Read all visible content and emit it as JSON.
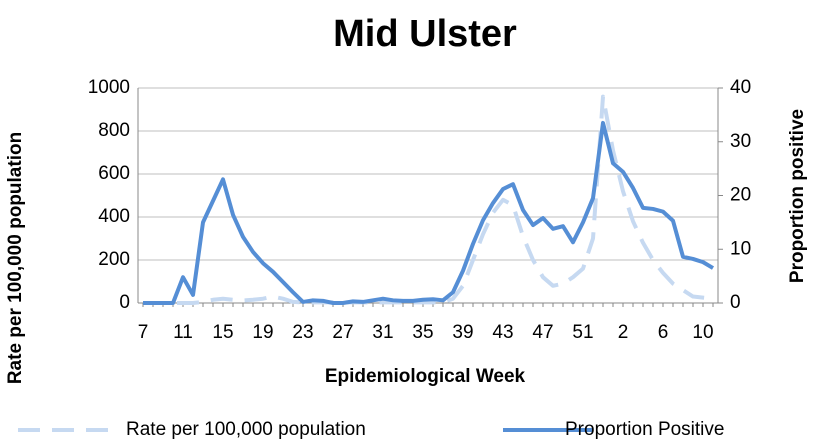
{
  "chart_data": {
    "type": "line",
    "title": "Mid Ulster",
    "x_label": "Epidemiological Week",
    "y_label": "Rate per 100,000 population",
    "y2_label": "Proportion positive",
    "categories": [
      "7",
      null,
      null,
      null,
      "11",
      null,
      null,
      null,
      "15",
      null,
      null,
      null,
      "19",
      null,
      null,
      null,
      "23",
      null,
      null,
      null,
      "27",
      null,
      null,
      null,
      "31",
      null,
      null,
      null,
      "35",
      null,
      null,
      null,
      "39",
      null,
      null,
      null,
      "43",
      null,
      null,
      null,
      "47",
      null,
      null,
      null,
      "51",
      null,
      null,
      null,
      "2",
      null,
      null,
      null,
      "6",
      null,
      null,
      null,
      "10",
      null
    ],
    "series": [
      {
        "name": "Rate per 100,000 population",
        "color": "#c6d9f1",
        "dashed": true,
        "values": [
          0,
          0,
          0,
          0,
          0,
          0,
          5,
          15,
          20,
          15,
          12,
          15,
          20,
          30,
          20,
          5,
          3,
          3,
          3,
          3,
          3,
          3,
          3,
          3,
          3,
          3,
          3,
          3,
          3,
          3,
          3,
          20,
          80,
          200,
          320,
          420,
          480,
          455,
          310,
          200,
          120,
          80,
          90,
          120,
          160,
          300,
          960,
          710,
          520,
          380,
          280,
          200,
          140,
          90,
          60,
          30,
          25,
          20
        ]
      },
      {
        "name": "Proportion Positive",
        "color": "#558ed5",
        "axis": "y2",
        "values": [
          0,
          0,
          0,
          0,
          4.8,
          1.5,
          15,
          19,
          23,
          16.4,
          12.3,
          9.5,
          7.4,
          5.8,
          3.9,
          2,
          0.2,
          0.5,
          0.4,
          0,
          0,
          0.3,
          0.2,
          0.5,
          0.8,
          0.5,
          0.4,
          0.4,
          0.6,
          0.7,
          0.5,
          2,
          6,
          11,
          15.4,
          18.6,
          21.2,
          22.1,
          17.3,
          14.5,
          15.8,
          13.8,
          14.3,
          11.3,
          15,
          19.5,
          33.5,
          26,
          24.4,
          21.4,
          17.7,
          17.5,
          17,
          15.3,
          8.6,
          8.2,
          7.6,
          6.5
        ]
      }
    ],
    "ylim": [
      0,
      1000
    ],
    "yticks": [
      0,
      200,
      400,
      600,
      800,
      1000
    ],
    "y2lim": [
      0,
      40
    ],
    "y2ticks": [
      0,
      10,
      20,
      30,
      40
    ],
    "grid": true,
    "legend": "bottom"
  }
}
